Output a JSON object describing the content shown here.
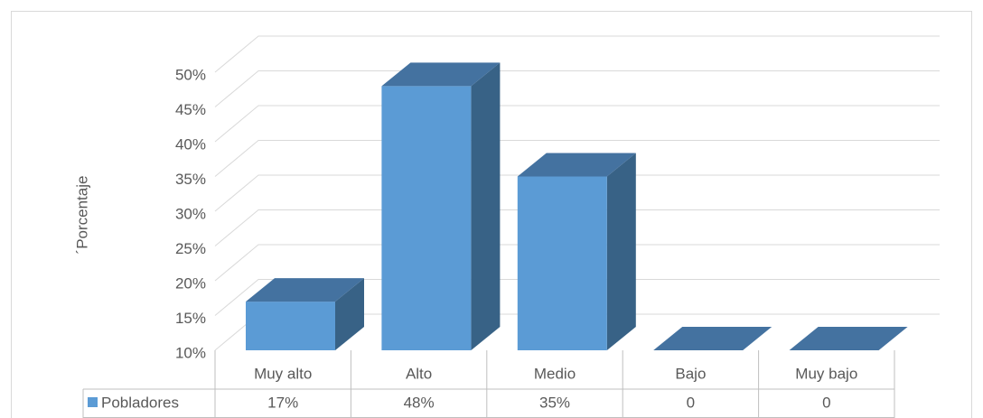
{
  "chart_data": {
    "type": "bar3d",
    "y_label": "´Porcentaje",
    "categories": [
      "Muy alto",
      "Alto",
      "Medio",
      "Bajo",
      "Muy bajo"
    ],
    "series": [
      {
        "name": "Pobladores",
        "color": "#5b9bd5",
        "values": [
          17,
          48,
          35,
          0,
          0
        ],
        "value_labels": [
          "17%",
          "48%",
          "35%",
          "0",
          "0"
        ]
      }
    ],
    "ylim": [
      10,
      50
    ],
    "yticks": [
      {
        "value": 10,
        "label": "10%"
      },
      {
        "value": 15,
        "label": "15%"
      },
      {
        "value": 20,
        "label": "20%"
      },
      {
        "value": 25,
        "label": "25%"
      },
      {
        "value": 30,
        "label": "30%"
      },
      {
        "value": 35,
        "label": "35%"
      },
      {
        "value": 40,
        "label": "40%"
      },
      {
        "value": 45,
        "label": "45%"
      },
      {
        "value": 50,
        "label": "50%"
      }
    ],
    "grid": true
  }
}
